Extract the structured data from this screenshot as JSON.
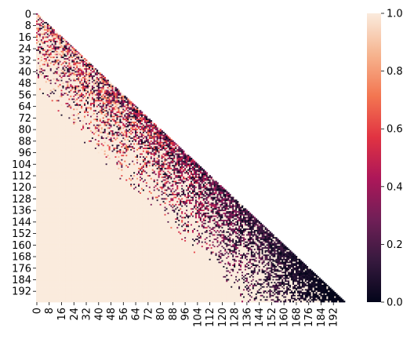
{
  "chart_data": {
    "type": "heatmap",
    "shape": "lower-triangle",
    "n": 200,
    "x_ticks": [
      "0",
      "8",
      "16",
      "24",
      "32",
      "40",
      "48",
      "56",
      "64",
      "72",
      "80",
      "88",
      "96",
      "104",
      "112",
      "120",
      "128",
      "136",
      "144",
      "152",
      "160",
      "168",
      "176",
      "184",
      "192"
    ],
    "y_ticks": [
      "0",
      "8",
      "16",
      "24",
      "32",
      "40",
      "48",
      "56",
      "64",
      "72",
      "80",
      "88",
      "96",
      "104",
      "112",
      "120",
      "128",
      "136",
      "144",
      "152",
      "160",
      "168",
      "176",
      "184",
      "192"
    ],
    "colorbar": {
      "vmin": 0.0,
      "vmax": 1.0,
      "ticks": [
        "0.0",
        "0.2",
        "0.4",
        "0.6",
        "0.8",
        "1.0"
      ]
    },
    "colormap_stops": [
      "#03051a",
      "#36193e",
      "#701f57",
      "#ad1759",
      "#e13342",
      "#f37651",
      "#f6b48f",
      "#faebdd"
    ],
    "value_trend": "cells near the left edge are ~1.0; values fall toward 0.0 near the diagonal, strongest at the bottom-right"
  }
}
